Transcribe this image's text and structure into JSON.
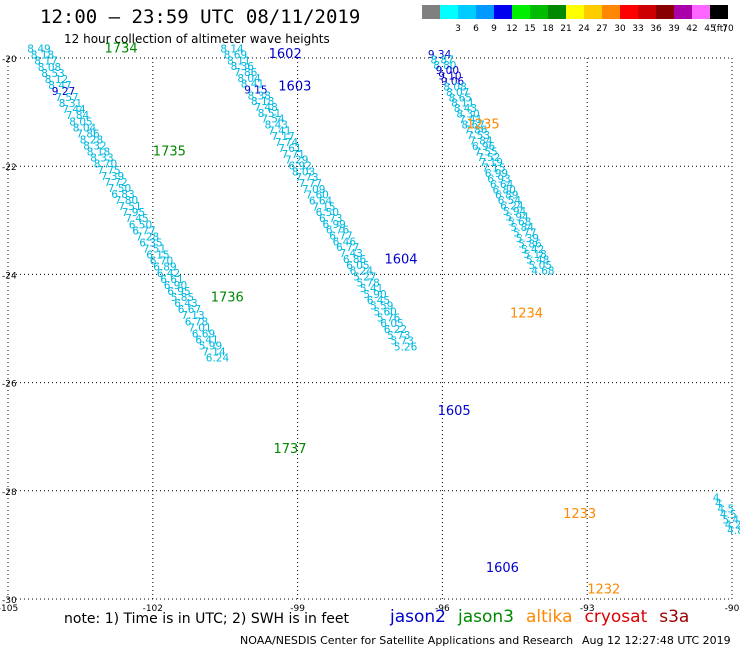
{
  "header": {
    "title": "12:00 — 23:59 UTC 08/11/2019",
    "subtitle": "12 hour collection of altimeter wave heights"
  },
  "legend": {
    "unit": "(ft)",
    "bins": [
      {
        "label": "",
        "color": "#808080"
      },
      {
        "label": "3",
        "color": "#00ffff"
      },
      {
        "label": "6",
        "color": "#00ccff"
      },
      {
        "label": "9",
        "color": "#0099ff"
      },
      {
        "label": "12",
        "color": "#0000ee"
      },
      {
        "label": "15",
        "color": "#00ee00"
      },
      {
        "label": "18",
        "color": "#00bb00"
      },
      {
        "label": "21",
        "color": "#008800"
      },
      {
        "label": "24",
        "color": "#ffff00"
      },
      {
        "label": "27",
        "color": "#ffcc00"
      },
      {
        "label": "30",
        "color": "#ff8800"
      },
      {
        "label": "33",
        "color": "#ff0000"
      },
      {
        "label": "36",
        "color": "#cc0000"
      },
      {
        "label": "39",
        "color": "#880000"
      },
      {
        "label": "42",
        "color": "#aa00aa"
      },
      {
        "label": "45",
        "color": "#ff66ff"
      },
      {
        "label": "70",
        "color": "#000000"
      }
    ]
  },
  "map": {
    "lat_labels": [
      "-20",
      "-22",
      "-24",
      "-26",
      "-28",
      "-30"
    ],
    "lon_labels": [
      "-105",
      "-102",
      "-99",
      "-96",
      "-93",
      "-90"
    ],
    "passes": [
      {
        "time": "1734",
        "color": "#008800",
        "lon": -103.0,
        "lat": -19.9
      },
      {
        "time": "1735",
        "color": "#008800",
        "lon": -102.0,
        "lat": -21.8
      },
      {
        "time": "1736",
        "color": "#008800",
        "lon": -100.8,
        "lat": -24.5
      },
      {
        "time": "1737",
        "color": "#008800",
        "lon": -99.5,
        "lat": -27.3
      },
      {
        "time": "1602",
        "color": "#0000cc",
        "lon": -99.6,
        "lat": -20.0
      },
      {
        "time": "1603",
        "color": "#0000cc",
        "lon": -99.4,
        "lat": -20.6
      },
      {
        "time": "1604",
        "color": "#0000cc",
        "lon": -97.2,
        "lat": -23.8
      },
      {
        "time": "1605",
        "color": "#0000cc",
        "lon": -96.1,
        "lat": -26.6
      },
      {
        "time": "1606",
        "color": "#0000cc",
        "lon": -95.1,
        "lat": -29.5
      },
      {
        "time": "1235",
        "color": "#ff8800",
        "lon": -95.5,
        "lat": -21.3
      },
      {
        "time": "1234",
        "color": "#ff8800",
        "lon": -94.6,
        "lat": -24.8
      },
      {
        "time": "1233",
        "color": "#ff8800",
        "lon": -93.5,
        "lat": -28.5
      },
      {
        "time": "1232",
        "color": "#ff8800",
        "lon": -93.0,
        "lat": -29.9
      }
    ],
    "tracks": [
      {
        "color": "#00b8e0",
        "start": [
          -104.6,
          -19.9
        ],
        "step": [
          0.0725,
          -0.112
        ],
        "values": [
          "8.49",
          "8.18",
          "8.17",
          "8.08",
          "8.53",
          "8.12",
          "8.47",
          "9.27",
          "7.57",
          "8.31",
          "7.44",
          "7.84",
          "8.05",
          "8.04",
          "7.86",
          "8.28",
          "8.32",
          "8.18",
          "8.33",
          "8.70",
          "7.75",
          "7.39",
          "7.72",
          "7.50",
          "6.83",
          "7.80",
          "7.51",
          "7.95",
          "7.45",
          "6.50",
          "6.77",
          "7.28",
          "6.35",
          "7.51",
          "6.15",
          "6.70",
          "6.89",
          "6.42",
          "6.61",
          "6.90",
          "6.95",
          "5.85",
          "6.43",
          "6.67",
          "7.13",
          "6.78",
          "7.01",
          "6.69",
          "6.41",
          "5.99",
          "7.14",
          "6.24"
        ]
      },
      {
        "color": "#00b8e0",
        "start": [
          -100.6,
          -19.9
        ],
        "step": [
          0.0705,
          -0.108
        ],
        "values": [
          "8.14",
          "8.69",
          "8.11",
          "8.36",
          "7.86",
          "8.04",
          "8.41",
          "9.15",
          "8.38",
          "8.18",
          "7.48",
          "8.51",
          "7.54",
          "8.43",
          "7.41",
          "7.17",
          "7.74",
          "7.61",
          "7.71",
          "7.29",
          "6.92",
          "8.03",
          "7.73",
          "7.77",
          "7.09",
          "7.60",
          "6.64",
          "7.15",
          "6.50",
          "6.73",
          "6.99",
          "6.76",
          "6.77",
          "6.46",
          "6.77",
          "7.43",
          "6.86",
          "6.05",
          "6.24",
          "5.27",
          "5.78",
          "5.41",
          "5.90",
          "6.45",
          "5.59",
          "5.60",
          "5.76",
          "6.05",
          "6.22",
          "5.73",
          "5.73",
          "5.26"
        ]
      },
      {
        "color": "#00b8e0",
        "start": [
          -96.3,
          -20.0
        ],
        "step": [
          0.0535,
          -0.1
        ],
        "values": [
          "9.34",
          "8.87",
          "8.80",
          "9.00",
          "9.10",
          "9.06",
          "8.08",
          "8.07",
          "8.65",
          "8.11",
          "8.43",
          "8.30",
          "7.41",
          "8.67",
          "7.86",
          "7.53",
          "7.84",
          "6.96",
          "7.55",
          "7.52",
          "7.19",
          "7.15",
          "6.99",
          "6.93",
          "6.64",
          "6.80",
          "6.89",
          "6.54",
          "6.24",
          "5.94",
          "5.94",
          "5.68",
          "5.84",
          "5.77",
          "5.39",
          "5.86",
          "5.42",
          "5.18",
          "5.48",
          "5.05",
          "4.68"
        ]
      },
      {
        "color": "#00b8e0",
        "start": [
          -90.4,
          -28.2
        ],
        "step": [
          0.05,
          -0.1
        ],
        "values": [
          "4.",
          "4.",
          "4.5",
          "4.5",
          "5.48",
          "4.23",
          "4.85"
        ]
      }
    ]
  },
  "footer": {
    "note": "note: 1) Time is in UTC; 2) SWH is in feet",
    "satellites": [
      {
        "name": "jason2",
        "color": "#0000cc"
      },
      {
        "name": "jason3",
        "color": "#008800"
      },
      {
        "name": "altika",
        "color": "#ff8800"
      },
      {
        "name": "cryosat",
        "color": "#dd0000"
      },
      {
        "name": "s3a",
        "color": "#990000"
      }
    ],
    "credit": "NOAA/NESDIS Center for Satellite Applications and Research",
    "timestamp": "Aug 12 12:27:48 UTC 2019"
  }
}
